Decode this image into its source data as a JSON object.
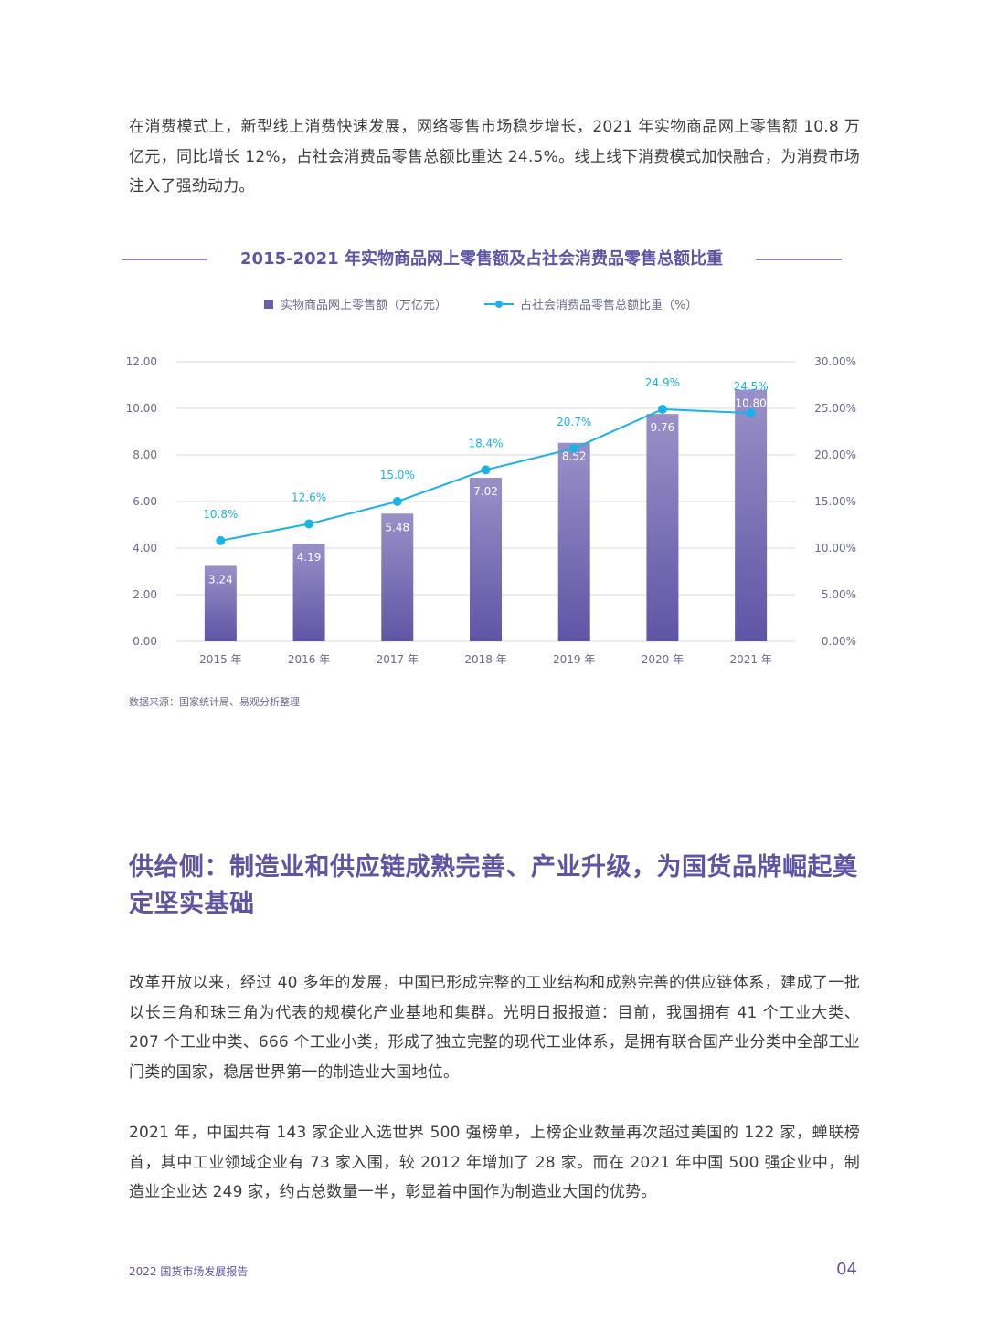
{
  "paragraphs": {
    "p1": "在消费模式上，新型线上消费快速发展，网络零售市场稳步增长，2021 年实物商品网上零售额 10.8 万亿元，同比增长 12%，占社会消费品零售总额比重达 24.5%。线上线下消费模式加快融合，为消费市场注入了强劲动力。",
    "p2": "改革开放以来，经过 40 多年的发展，中国已形成完整的工业结构和成熟完善的供应链体系，建成了一批以长三角和珠三角为代表的规模化产业基地和集群。光明日报报道：目前，我国拥有 41 个工业大类、207 个工业中类、666 个工业小类，形成了独立完整的现代工业体系，是拥有联合国产业分类中全部工业门类的国家，稳居世界第一的制造业大国地位。",
    "p3": "2021 年，中国共有 143 家企业入选世界 500 强榜单，上榜企业数量再次超过美国的 122 家，蝉联榜首，其中工业领域企业有 73 家入围，较 2012 年增加了 28 家。而在 2021 年中国 500 强企业中，制造业企业达 249 家，约占总数量一半，彰显着中国作为制造业大国的优势。"
  },
  "section_heading": "供给侧：制造业和供应链成熟完善、产业升级，为国货品牌崛起奠定坚实基础",
  "source": "数据来源：国家统计局、易观分析整理",
  "footer": {
    "report": "2022 国货市场发展报告",
    "page": "04"
  },
  "colors": {
    "accent": "#5d54a4",
    "bar_top": "#9a90c8",
    "bar_bottom": "#5f55a5",
    "line": "#1bb2e6"
  },
  "chart_data": {
    "type": "bar+line",
    "title": "2015-2021 年实物商品网上零售额及占社会消费品零售总额比重",
    "categories": [
      "2015 年",
      "2016 年",
      "2017 年",
      "2018 年",
      "2019 年",
      "2020 年",
      "2021 年"
    ],
    "series": [
      {
        "name": "实物商品网上零售额（万亿元）",
        "type": "bar",
        "axis": "left",
        "values": [
          3.24,
          4.19,
          5.48,
          7.02,
          8.52,
          9.76,
          10.8
        ],
        "labels": [
          "3.24",
          "4.19",
          "5.48",
          "7.02",
          "8.52",
          "9.76",
          "10.80"
        ]
      },
      {
        "name": "占社会消费品零售总额比重（%）",
        "type": "line",
        "axis": "right",
        "values": [
          10.8,
          12.6,
          15.0,
          18.4,
          20.7,
          24.9,
          24.5
        ],
        "labels": [
          "10.8%",
          "12.6%",
          "15.0%",
          "18.4%",
          "20.7%",
          "24.9%",
          "24.5%"
        ]
      }
    ],
    "y_left": {
      "range": [
        0,
        12
      ],
      "ticks": [
        "0.00",
        "2.00",
        "4.00",
        "6.00",
        "8.00",
        "10.00",
        "12.00"
      ]
    },
    "y_right": {
      "range": [
        0,
        30
      ],
      "ticks": [
        "0.00%",
        "5.00%",
        "10.00%",
        "15.00%",
        "20.00%",
        "25.00%",
        "30.00%"
      ]
    },
    "grid": true,
    "legend": "top"
  }
}
